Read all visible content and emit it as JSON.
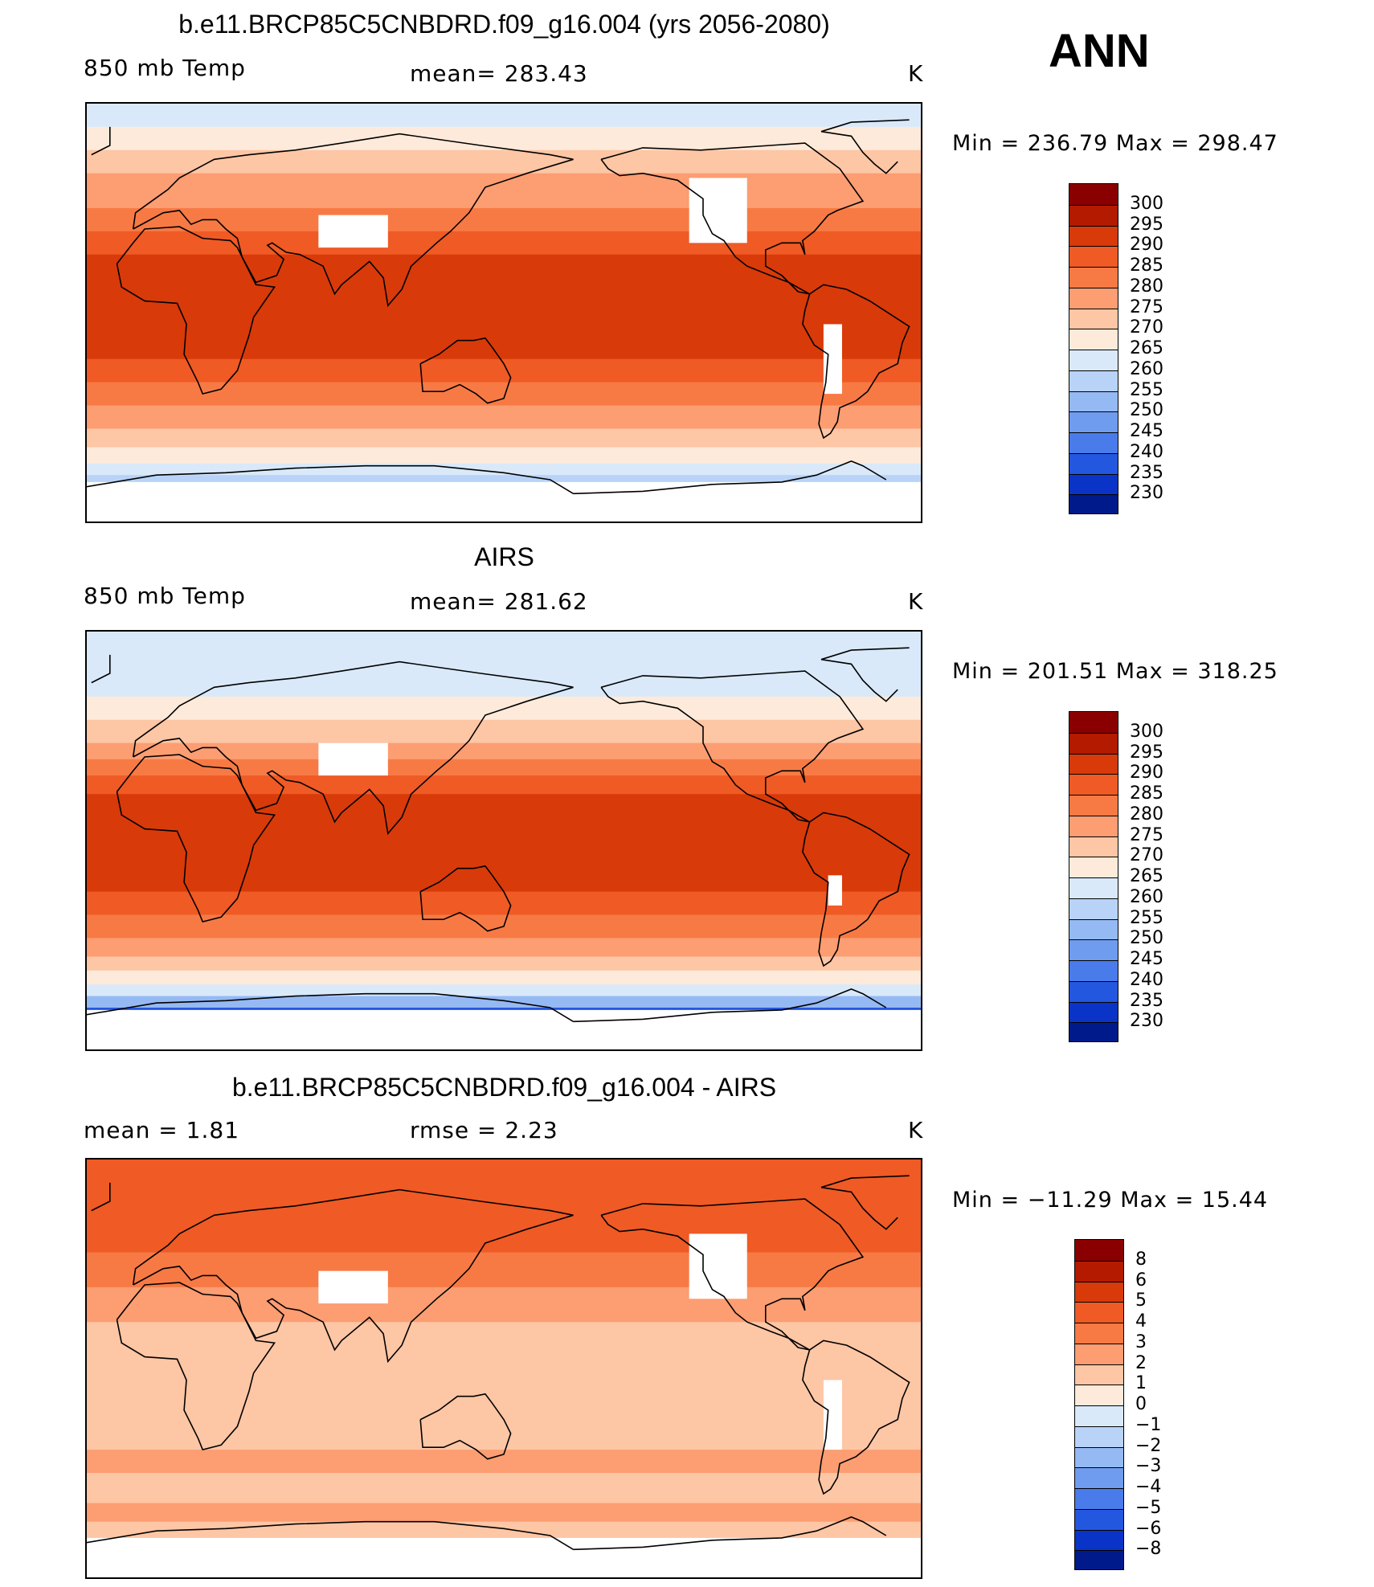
{
  "header": {
    "season": "ANN"
  },
  "panels": [
    {
      "title": "b.e11.BRCP85C5CNBDRD.f09_g16.004 (yrs 2056-2080)",
      "left_label": "850 mb Temp",
      "center_label": "mean= 283.43",
      "units": "K",
      "minmax": "Min = 236.79  Max = 298.47",
      "colorbar_labels": [
        "300",
        "295",
        "290",
        "285",
        "280",
        "275",
        "270",
        "265",
        "260",
        "255",
        "250",
        "245",
        "240",
        "235",
        "230"
      ],
      "colors": [
        "#8a0000",
        "#b31a00",
        "#d83a0a",
        "#ef5a25",
        "#f77a45",
        "#fc9d72",
        "#fdc6a5",
        "#feeada",
        "#d9e9fa",
        "#b8d3f7",
        "#95b9f3",
        "#6f9cef",
        "#4a7beb",
        "#2457e0",
        "#0a34c8",
        "#001a8c"
      ],
      "bands": [
        {
          "lat": 90,
          "c": 8
        },
        {
          "lat": 80,
          "c": 7
        },
        {
          "lat": 70,
          "c": 6
        },
        {
          "lat": 60,
          "c": 5
        },
        {
          "lat": 45,
          "c": 4
        },
        {
          "lat": 35,
          "c": 3
        },
        {
          "lat": 25,
          "c": 2
        },
        {
          "lat": -10,
          "c": 2
        },
        {
          "lat": -20,
          "c": 3
        },
        {
          "lat": -30,
          "c": 4
        },
        {
          "lat": -40,
          "c": 5
        },
        {
          "lat": -50,
          "c": 6
        },
        {
          "lat": -58,
          "c": 7
        },
        {
          "lat": -65,
          "c": 8
        },
        {
          "lat": -70,
          "c": 9
        }
      ]
    },
    {
      "title": "AIRS",
      "left_label": "850 mb Temp",
      "center_label": "mean= 281.62",
      "units": "K",
      "minmax": "Min = 201.51  Max = 318.25",
      "colorbar_labels": [
        "300",
        "295",
        "290",
        "285",
        "280",
        "275",
        "270",
        "265",
        "260",
        "255",
        "250",
        "245",
        "240",
        "235",
        "230"
      ],
      "colors": [
        "#8a0000",
        "#b31a00",
        "#d83a0a",
        "#ef5a25",
        "#f77a45",
        "#fc9d72",
        "#fdc6a5",
        "#feeada",
        "#d9e9fa",
        "#b8d3f7",
        "#95b9f3",
        "#6f9cef",
        "#4a7beb",
        "#2457e0",
        "#0a34c8",
        "#001a8c"
      ],
      "bands": [
        {
          "lat": 90,
          "c": 8
        },
        {
          "lat": 70,
          "c": 8
        },
        {
          "lat": 62,
          "c": 7
        },
        {
          "lat": 52,
          "c": 6
        },
        {
          "lat": 42,
          "c": 5
        },
        {
          "lat": 35,
          "c": 4
        },
        {
          "lat": 28,
          "c": 3
        },
        {
          "lat": 20,
          "c": 2
        },
        {
          "lat": -15,
          "c": 2
        },
        {
          "lat": -22,
          "c": 3
        },
        {
          "lat": -32,
          "c": 4
        },
        {
          "lat": -42,
          "c": 5
        },
        {
          "lat": -50,
          "c": 6
        },
        {
          "lat": -56,
          "c": 7
        },
        {
          "lat": -62,
          "c": 8
        },
        {
          "lat": -67,
          "c": 10
        },
        {
          "lat": -72,
          "c": 13
        }
      ]
    },
    {
      "title": "b.e11.BRCP85C5CNBDRD.f09_g16.004 - AIRS",
      "left_label": "mean =    1.81",
      "center_label": "rmse =    2.23",
      "units": "K",
      "minmax": "Min = −11.29  Max =   15.44",
      "colorbar_labels": [
        "8",
        "6",
        "5",
        "4",
        "3",
        "2",
        "1",
        "0",
        "−1",
        "−2",
        "−3",
        "−4",
        "−5",
        "−6",
        "−8"
      ],
      "colors": [
        "#8a0000",
        "#b31a00",
        "#d83a0a",
        "#ef5a25",
        "#f77a45",
        "#fc9d72",
        "#fdc6a5",
        "#feeada",
        "#d9e9fa",
        "#b8d3f7",
        "#95b9f3",
        "#6f9cef",
        "#4a7beb",
        "#2457e0",
        "#0a34c8",
        "#001a8c"
      ],
      "bands": [
        {
          "lat": 90,
          "c": 3
        },
        {
          "lat": 60,
          "c": 3
        },
        {
          "lat": 50,
          "c": 4
        },
        {
          "lat": 35,
          "c": 5
        },
        {
          "lat": 20,
          "c": 6
        },
        {
          "lat": 0,
          "c": 6
        },
        {
          "lat": -20,
          "c": 6
        },
        {
          "lat": -35,
          "c": 5
        },
        {
          "lat": -45,
          "c": 6
        },
        {
          "lat": -58,
          "c": 5
        },
        {
          "lat": -66,
          "c": 6
        }
      ]
    }
  ]
}
